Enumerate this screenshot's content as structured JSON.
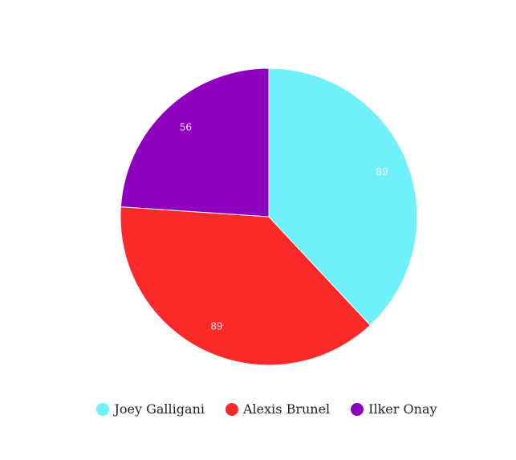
{
  "chart_data": {
    "type": "pie",
    "title": "",
    "categories": [
      "Joey Galligani",
      "Alexis Brunel",
      "Ilker Onay"
    ],
    "values": [
      89,
      89,
      56
    ],
    "colors": [
      "#70f0fa",
      "#fb2a2a",
      "#8e00be"
    ],
    "start_angle_deg": 0,
    "direction": "clockwise",
    "show_data_labels": true,
    "legend_position": "bottom"
  }
}
